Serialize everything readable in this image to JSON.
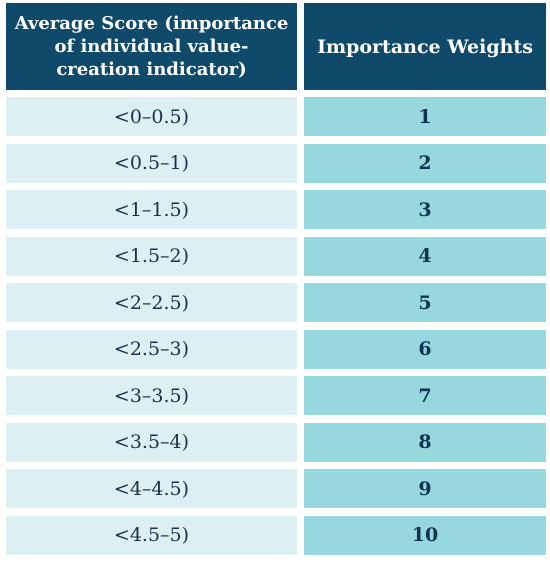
{
  "header": {
    "score_line1": "Average Score (importance",
    "score_line2": "of individual value-",
    "score_line3": "creation indicator)",
    "weight": "Importance Weights"
  },
  "rows": [
    {
      "score": "<0–0.5)",
      "weight": "1"
    },
    {
      "score": "<0.5–1)",
      "weight": "2"
    },
    {
      "score": "<1–1.5)",
      "weight": "3"
    },
    {
      "score": "<1.5–2)",
      "weight": "4"
    },
    {
      "score": "<2–2.5)",
      "weight": "5"
    },
    {
      "score": "<2.5–3)",
      "weight": "6"
    },
    {
      "score": "<3–3.5)",
      "weight": "7"
    },
    {
      "score": "<3.5–4)",
      "weight": "8"
    },
    {
      "score": "<4–4.5)",
      "weight": "9"
    },
    {
      "score": "<4.5–5)",
      "weight": "10"
    }
  ]
}
